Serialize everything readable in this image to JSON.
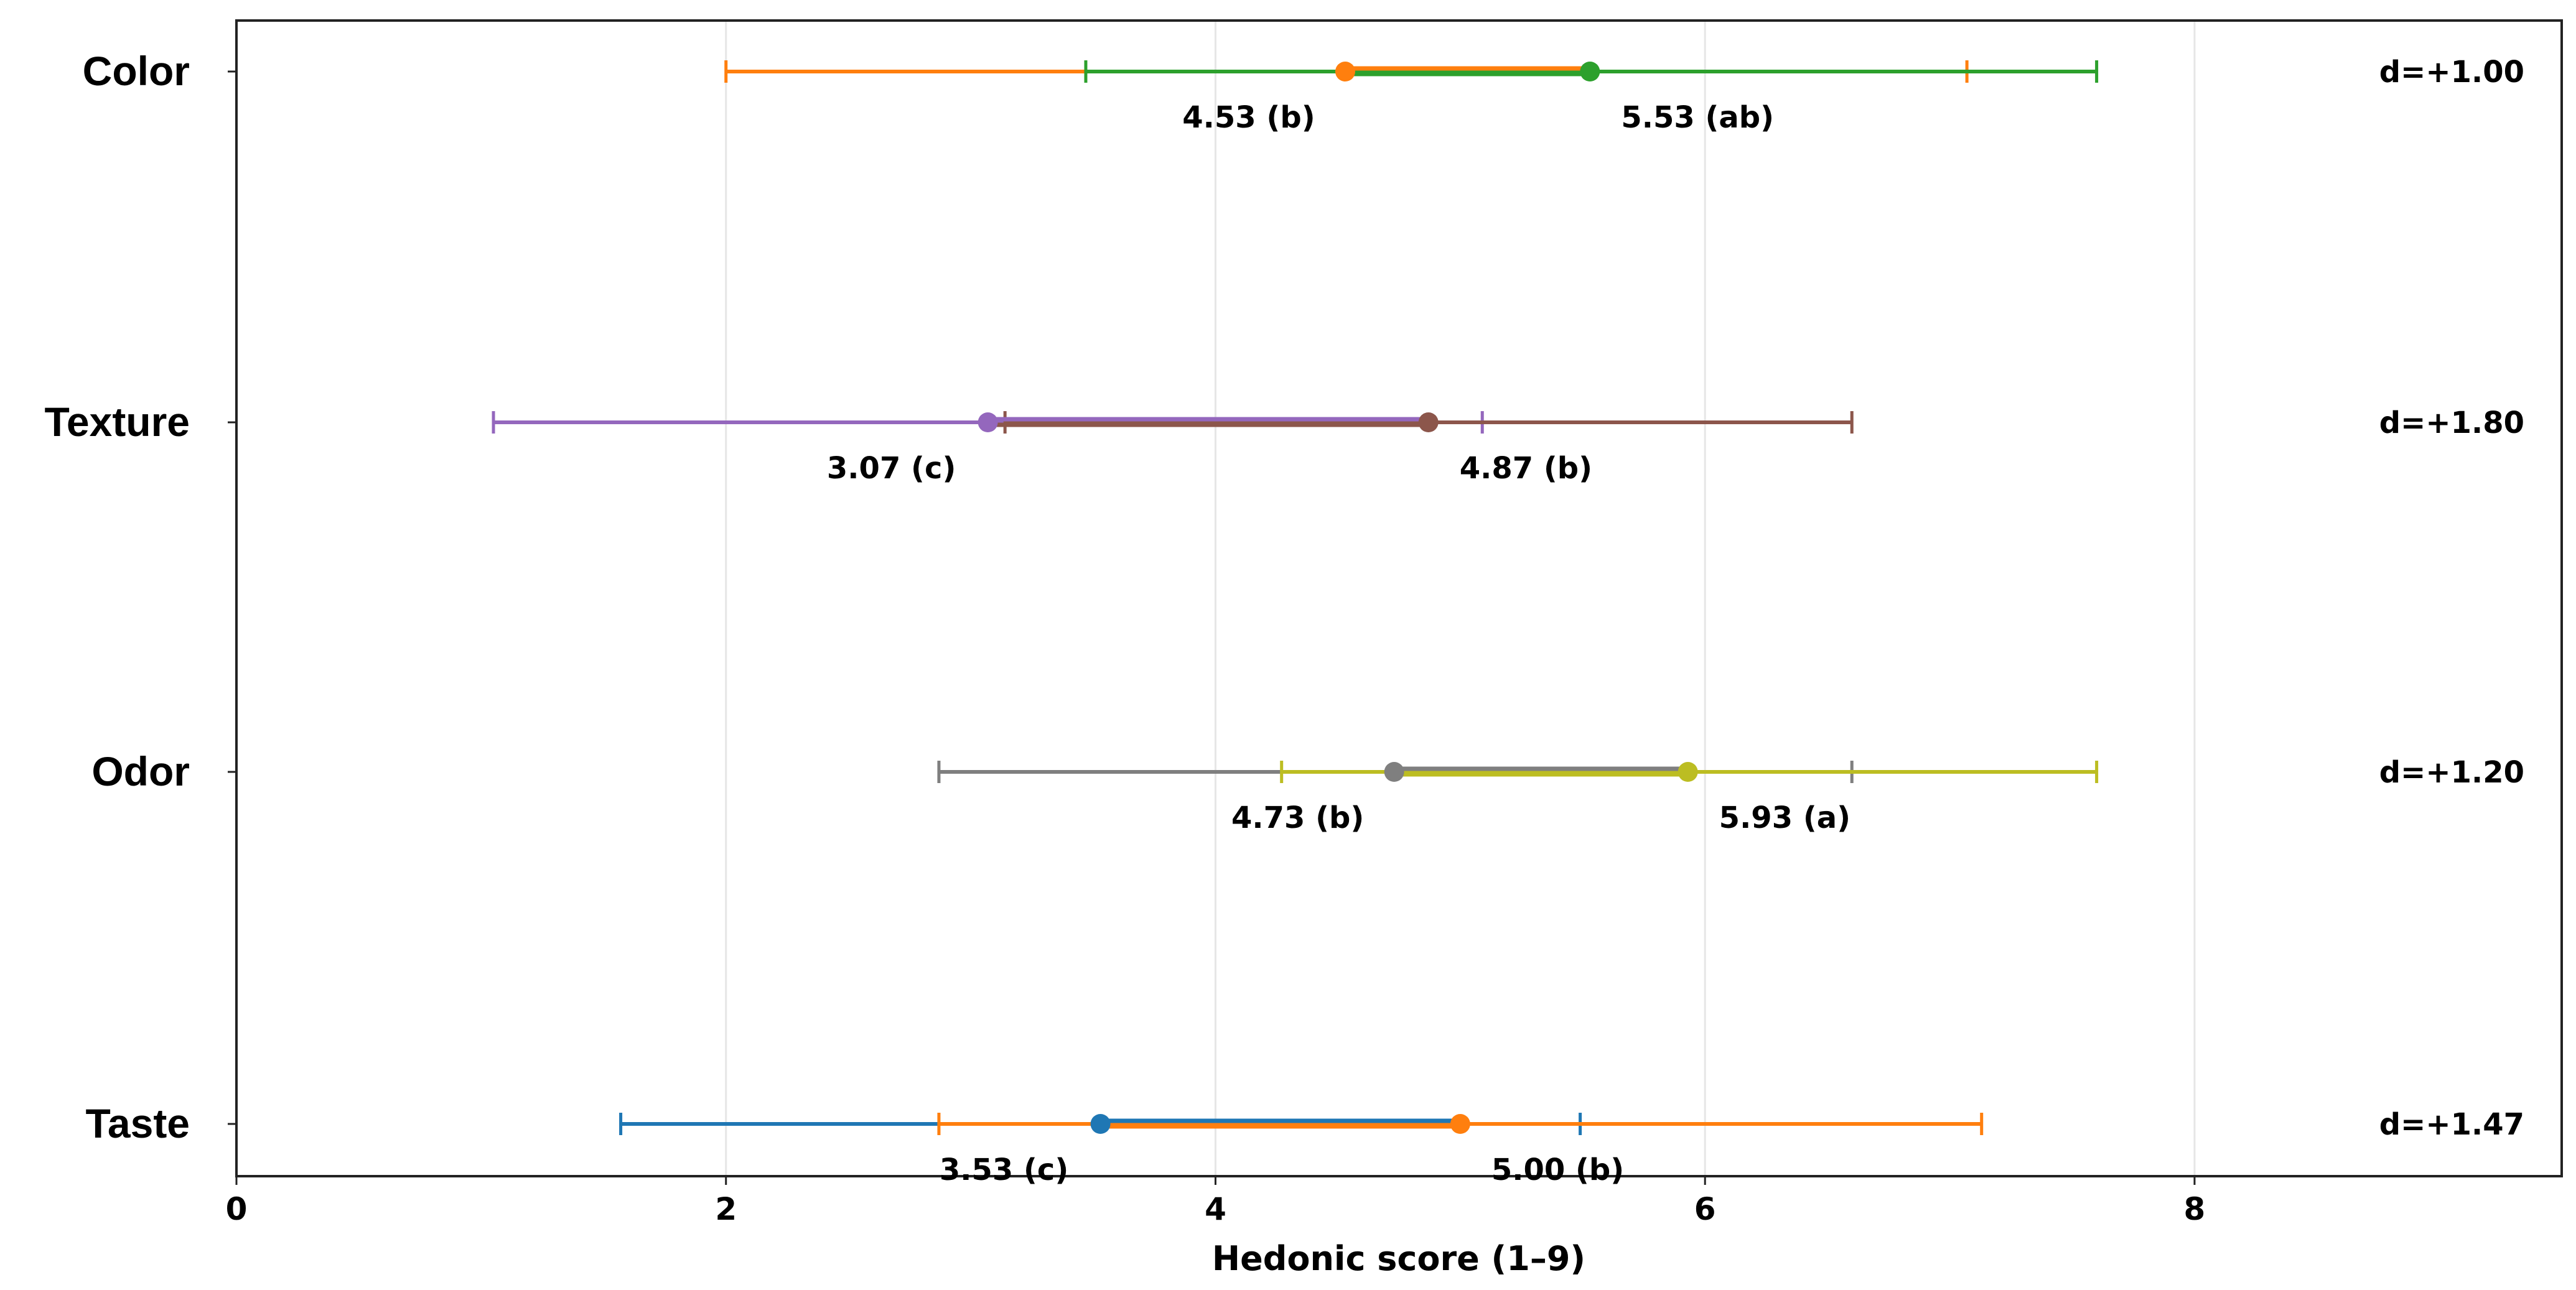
{
  "chart_data": {
    "type": "scatter",
    "xlabel": "Hedonic score (1–9)",
    "xlim": [
      0,
      9.5
    ],
    "x_ticks": [
      0,
      2,
      4,
      6,
      8
    ],
    "grid": "x",
    "categories": [
      "Color",
      "Texture",
      "Odor",
      "Taste"
    ],
    "rows": [
      {
        "category": "Color",
        "effect_label": "d=+1.00",
        "points": [
          {
            "mean": 4.53,
            "lower": 2.0,
            "upper": 7.07,
            "label": "4.53 (b)",
            "color": "#ff7f0e"
          },
          {
            "mean": 5.53,
            "lower": 3.47,
            "upper": 7.6,
            "label": "5.53 (ab)",
            "color": "#2ca02c"
          }
        ]
      },
      {
        "category": "Texture",
        "effect_label": "d=+1.80",
        "points": [
          {
            "mean": 3.07,
            "lower": 1.05,
            "upper": 5.09,
            "label": "3.07 (c)",
            "color": "#9467bd"
          },
          {
            "mean": 4.87,
            "lower": 3.14,
            "upper": 6.6,
            "label": "4.87 (b)",
            "color": "#8c564b"
          }
        ]
      },
      {
        "category": "Odor",
        "effect_label": "d=+1.20",
        "points": [
          {
            "mean": 4.73,
            "lower": 2.87,
            "upper": 6.6,
            "label": "4.73 (b)",
            "color": "#7f7f7f"
          },
          {
            "mean": 5.93,
            "lower": 4.27,
            "upper": 7.6,
            "label": "5.93 (a)",
            "color": "#bcbd22"
          }
        ]
      },
      {
        "category": "Taste",
        "effect_label": "d=+1.47",
        "points": [
          {
            "mean": 3.53,
            "lower": 1.57,
            "upper": 5.49,
            "label": "3.53 (c)",
            "color": "#1f77b4"
          },
          {
            "mean": 5.0,
            "lower": 2.87,
            "upper": 7.13,
            "label": "5.00 (b)",
            "color": "#ff7f0e"
          }
        ]
      }
    ]
  }
}
